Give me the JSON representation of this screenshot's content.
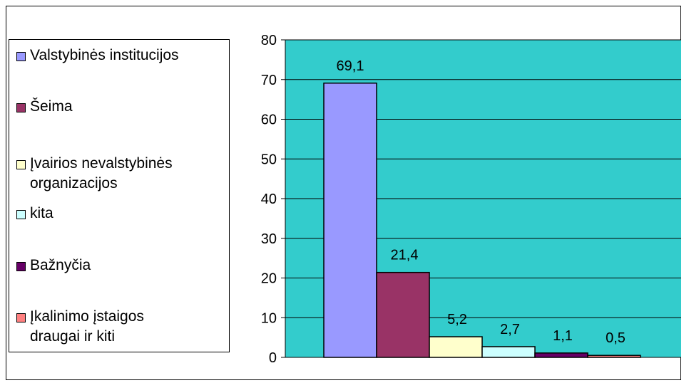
{
  "chart_data": {
    "type": "bar",
    "categories": [
      "Valstybinės institucijos",
      "Šeima",
      "Įvairios nevalstybinės\norganizacijos",
      "kita",
      "Bažnyčia",
      "Įkalinimo įstaigos\ndraugai ir kiti"
    ],
    "values": [
      69.1,
      21.4,
      5.2,
      2.7,
      1.1,
      0.5
    ],
    "value_labels": [
      "69,1",
      "21,4",
      "5,2",
      "2,7",
      "1,1",
      "0,5"
    ],
    "colors": [
      "#9999ff",
      "#993366",
      "#ffffcc",
      "#ccffff",
      "#660066",
      "#ff8080"
    ],
    "ylim": [
      0,
      80
    ],
    "yticks": [
      0,
      10,
      20,
      30,
      40,
      50,
      60,
      70,
      80
    ],
    "plot_background": "#33cccc",
    "grid": true,
    "legend_placement": "left"
  }
}
